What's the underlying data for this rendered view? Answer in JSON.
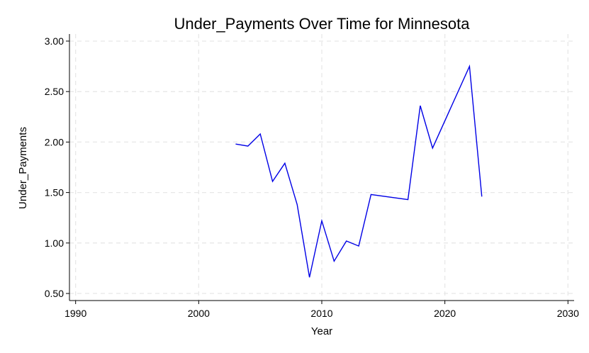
{
  "chart_data": {
    "type": "line",
    "title": "Under_Payments Over Time for Minnesota",
    "xlabel": "Year",
    "ylabel": "Under_Payments",
    "xlim": [
      1989.5,
      2030.5
    ],
    "ylim": [
      0.43,
      3.07
    ],
    "xticks": [
      1990,
      2000,
      2010,
      2020,
      2030
    ],
    "xtick_labels": [
      "1990",
      "2000",
      "2010",
      "2020",
      "2030"
    ],
    "yticks": [
      0.5,
      1.0,
      1.5,
      2.0,
      2.5,
      3.0
    ],
    "ytick_labels": [
      "0.50",
      "1.00",
      "1.50",
      "2.00",
      "2.50",
      "3.00"
    ],
    "grid": true,
    "color": "#0000e6",
    "series": [
      {
        "x": [
          2003,
          2004,
          2005,
          2006,
          2007,
          2008,
          2009,
          2010,
          2011,
          2012,
          2013,
          2014,
          2017,
          2018,
          2019,
          2022,
          2023
        ],
        "y": [
          1.98,
          1.96,
          2.08,
          1.61,
          1.79,
          1.38,
          0.66,
          1.22,
          0.82,
          1.02,
          0.97,
          1.48,
          1.43,
          2.36,
          1.94,
          2.75,
          1.46
        ]
      }
    ]
  }
}
